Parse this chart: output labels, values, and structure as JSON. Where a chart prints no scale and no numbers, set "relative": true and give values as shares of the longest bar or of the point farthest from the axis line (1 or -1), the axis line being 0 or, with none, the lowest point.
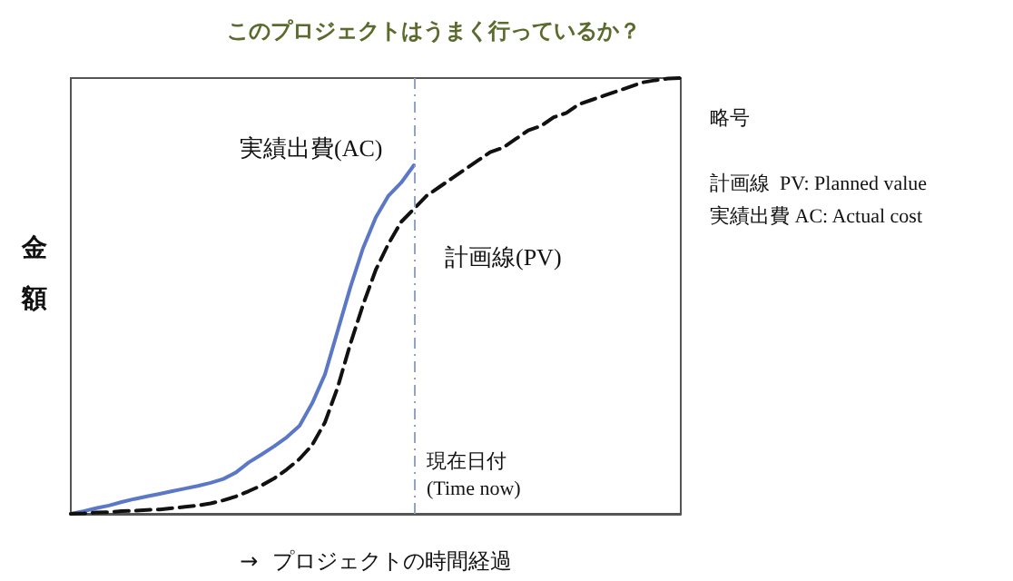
{
  "chart_data": {
    "type": "line",
    "title": "このプロジェクトはうまく行っているか？",
    "xlabel": "→  プロジェクトの時間経過",
    "ylabel": "金額",
    "relative": true,
    "marker": "none",
    "categories": [
      null,
      null,
      null,
      null,
      null,
      null,
      null,
      null,
      null,
      null,
      null,
      null,
      null,
      null,
      null,
      null,
      null,
      null,
      null,
      null,
      null,
      null,
      null,
      null,
      null,
      null,
      null,
      null,
      null,
      null,
      null,
      null,
      null,
      null,
      null,
      null,
      null,
      null,
      null,
      null,
      null,
      null,
      null,
      null,
      null,
      null,
      null,
      null,
      null
    ],
    "series": [
      {
        "name": "実績出費(AC)",
        "color": "#5b78c6",
        "line_style": "solid",
        "values": [
          0,
          0.006,
          0.013,
          0.019,
          0.027,
          0.034,
          0.04,
          0.046,
          0.052,
          0.058,
          0.064,
          0.071,
          0.08,
          0.095,
          0.118,
          0.136,
          0.155,
          0.176,
          0.202,
          0.254,
          0.32,
          0.42,
          0.52,
          0.61,
          0.68,
          0.73,
          0.76,
          0.8,
          null,
          null,
          null,
          null,
          null,
          null,
          null,
          null,
          null,
          null,
          null,
          null,
          null,
          null,
          null,
          null,
          null,
          null,
          null,
          null,
          null
        ]
      },
      {
        "name": "計画線(PV)",
        "color": "#111111",
        "line_style": "dashed",
        "values": [
          0,
          0.001,
          0.003,
          0.004,
          0.006,
          0.007,
          0.009,
          0.01,
          0.013,
          0.016,
          0.019,
          0.024,
          0.031,
          0.04,
          0.052,
          0.065,
          0.081,
          0.102,
          0.126,
          0.158,
          0.21,
          0.29,
          0.39,
          0.48,
          0.56,
          0.62,
          0.67,
          0.7,
          0.73,
          0.75,
          0.77,
          0.79,
          0.81,
          0.83,
          0.84,
          0.86,
          0.88,
          0.89,
          0.91,
          0.92,
          0.94,
          0.95,
          0.96,
          0.97,
          0.98,
          0.99,
          0.995,
          0.999,
          1
        ]
      }
    ],
    "annotations": [
      "現在日付\n(Time now)",
      "略号",
      "計画線  PV: Planned value",
      "実績出費 AC: Actual cost"
    ]
  }
}
